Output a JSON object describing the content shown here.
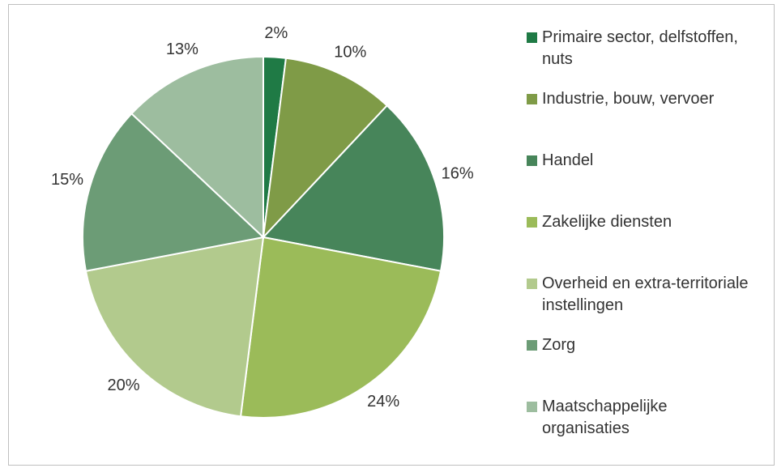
{
  "chart_data": {
    "type": "pie",
    "series": [
      {
        "name": "Primaire sector, delfstoffen, nuts",
        "color": "#1f7a45"
      },
      {
        "name": "Industrie, bouw, vervoer",
        "color": "#7f9b47"
      },
      {
        "name": "Handel",
        "color": "#47855a"
      },
      {
        "name": "Zakelijke diensten",
        "color": "#9bbb59"
      },
      {
        "name": "Overheid en extra-territoriale instellingen",
        "color": "#b2ca8d"
      },
      {
        "name": "Zorg",
        "color": "#6c9c76"
      },
      {
        "name": "Maatschappelijke organisaties",
        "color": "#9dbd9f"
      }
    ],
    "values": [
      2,
      10,
      16,
      24,
      20,
      15,
      13
    ],
    "value_labels": [
      "2%",
      "10%",
      "16%",
      "24%",
      "20%",
      "15%",
      "13%"
    ],
    "legend": "right"
  }
}
